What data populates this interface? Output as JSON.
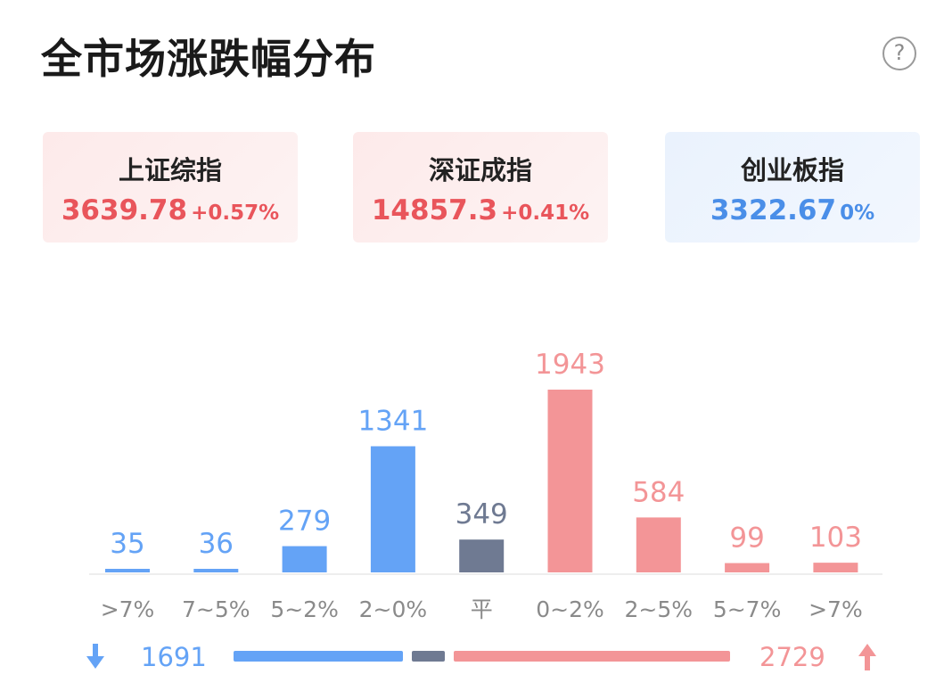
{
  "header": {
    "title": "全市场涨跌幅分布",
    "help_icon": "?"
  },
  "indices": [
    {
      "name": "上证综指",
      "value": "3639.78",
      "change": "+0.57%",
      "trend": "up"
    },
    {
      "name": "深证成指",
      "value": "14857.3",
      "change": "+0.41%",
      "trend": "up"
    },
    {
      "name": "创业板指",
      "value": "3322.67",
      "change": "0%",
      "trend": "flat"
    }
  ],
  "colors": {
    "down": "#64a3f6",
    "flat": "#6f7a92",
    "up": "#f39597"
  },
  "chart_data": {
    "type": "bar",
    "categories": [
      ">7%",
      "7~5%",
      "5~2%",
      "2~0%",
      "平",
      "0~2%",
      "2~5%",
      "5~7%",
      ">7%"
    ],
    "values": [
      35,
      36,
      279,
      1341,
      349,
      1943,
      584,
      99,
      103
    ],
    "groups": [
      "down",
      "down",
      "down",
      "down",
      "flat",
      "up",
      "up",
      "up",
      "up"
    ],
    "title": "全市场涨跌幅分布",
    "summary": {
      "down_total": 1691,
      "up_total": 2729
    }
  }
}
